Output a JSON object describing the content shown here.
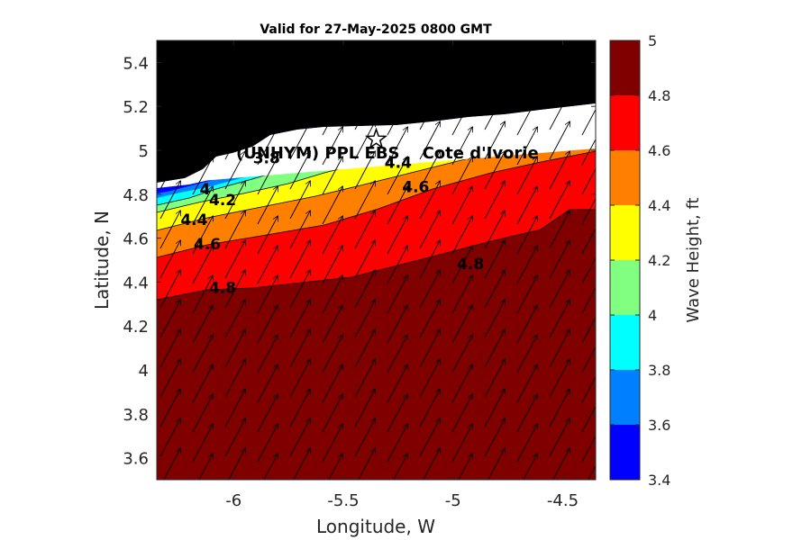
{
  "chart_data": {
    "type": "heatmap",
    "title": "Valid for 27-May-2025 0800 GMT",
    "xlabel": "Longitude, W",
    "ylabel": "Latitude, N",
    "xlim": [
      -6.35,
      -4.35
    ],
    "ylim": [
      3.5,
      5.5
    ],
    "xticks": [
      -6,
      -5.5,
      -5,
      -4.5
    ],
    "yticks": [
      3.6,
      3.8,
      4,
      4.2,
      4.4,
      4.6,
      4.8,
      5,
      5.2,
      5.4
    ],
    "colorbar": {
      "label": "Wave Height, ft",
      "levels": [
        3.4,
        3.6,
        3.8,
        4,
        4.2,
        4.4,
        4.6,
        4.8,
        5
      ],
      "colors": [
        "#0000ff",
        "#0080ff",
        "#00ffff",
        "#80ff80",
        "#ffff00",
        "#ff8000",
        "#ff0000",
        "#800000"
      ]
    },
    "land_color": "#000000",
    "coast_color": "#ffffff",
    "site_label": "(UNHYM) PPL EBS    Cote d'Ivorie",
    "site_marker": {
      "lon": -5.35,
      "lat": 5.05
    },
    "contour_labels": [
      {
        "text": "3.8",
        "lon": -5.85,
        "lat": 4.94
      },
      {
        "text": "4",
        "lon": -6.13,
        "lat": 4.8
      },
      {
        "text": "4.2",
        "lon": -6.05,
        "lat": 4.75
      },
      {
        "text": "4.4",
        "lon": -6.18,
        "lat": 4.66
      },
      {
        "text": "4.4",
        "lon": -5.25,
        "lat": 4.92
      },
      {
        "text": "4.6",
        "lon": -6.12,
        "lat": 4.55
      },
      {
        "text": "4.6",
        "lon": -5.17,
        "lat": 4.81
      },
      {
        "text": "4.8",
        "lon": -6.05,
        "lat": 4.35
      },
      {
        "text": "4.8",
        "lon": -4.92,
        "lat": 4.46
      }
    ],
    "wave_direction": "toward north-northeast"
  }
}
